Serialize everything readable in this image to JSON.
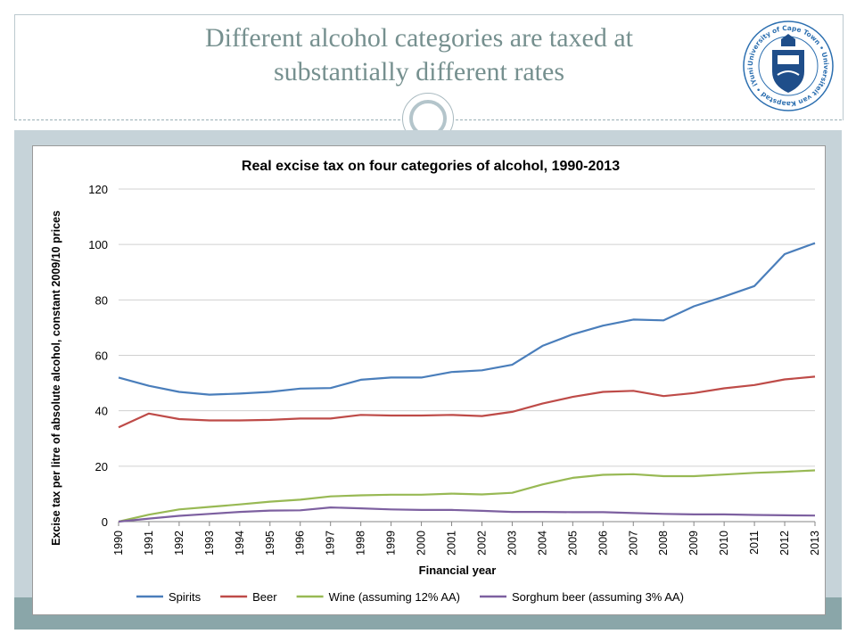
{
  "slide": {
    "title_line1": "Different alcohol categories are taxed at",
    "title_line2": "substantially different rates",
    "logo_text": "University of Cape Town • Universiteit van Kaapstad • iYunivesithi yaseKapa •"
  },
  "colors": {
    "spirits": "#4a7ebb",
    "beer": "#be4b48",
    "wine": "#98b954",
    "sorghum": "#7d60a0",
    "title": "#76908f",
    "band": "#c6d3d9",
    "strip": "#8aa6a9"
  },
  "chart_data": {
    "type": "line",
    "title": "Real excise tax on four categories of alcohol, 1990-2013",
    "xlabel": "Financial year",
    "ylabel": "Excise tax per litre of absolute alcohol, constant 2009/10 prices",
    "ylim": [
      0,
      120
    ],
    "yticks": [
      0,
      20,
      40,
      60,
      80,
      100,
      120
    ],
    "grid": true,
    "legend_position": "bottom",
    "x": [
      "1990",
      "1991",
      "1992",
      "1993",
      "1994",
      "1995",
      "1996",
      "1997",
      "1998",
      "1999",
      "2000",
      "2001",
      "2002",
      "2003",
      "2004",
      "2005",
      "2006",
      "2007",
      "2008",
      "2009",
      "2010",
      "2011",
      "2012",
      "2013"
    ],
    "series": [
      {
        "name": "Spirits",
        "color": "#4a7ebb",
        "values": [
          52,
          49,
          46.8,
          45.8,
          46.2,
          46.8,
          48,
          48.2,
          51.2,
          52,
          52,
          54,
          54.6,
          56.6,
          63.4,
          67.6,
          70.7,
          72.9,
          72.6,
          77.7,
          81.2,
          85,
          96.5,
          100.5
        ]
      },
      {
        "name": "Beer",
        "color": "#be4b48",
        "values": [
          34,
          39,
          37,
          36.5,
          36.5,
          36.7,
          37.2,
          37.2,
          38.5,
          38.3,
          38.3,
          38.5,
          38.1,
          39.6,
          42.6,
          45,
          46.8,
          47.2,
          45.3,
          46.4,
          48.1,
          49.3,
          51.3,
          52.3
        ]
      },
      {
        "name": "Wine (assuming 12% AA)",
        "color": "#98b954",
        "values": [
          0,
          2.5,
          4.4,
          5.3,
          6.2,
          7.2,
          7.9,
          9.1,
          9.5,
          9.7,
          9.7,
          10.1,
          9.8,
          10.4,
          13.4,
          15.8,
          16.9,
          17.1,
          16.4,
          16.4,
          17,
          17.6,
          18,
          18.5
        ]
      },
      {
        "name": "Sorghum beer (assuming 3% AA)",
        "color": "#7d60a0",
        "values": [
          0,
          1.1,
          2.1,
          2.8,
          3.5,
          4,
          4.1,
          5.1,
          4.8,
          4.4,
          4.2,
          4.2,
          3.9,
          3.5,
          3.5,
          3.4,
          3.4,
          3.1,
          2.8,
          2.6,
          2.6,
          2.4,
          2.3,
          2.2
        ]
      }
    ]
  }
}
